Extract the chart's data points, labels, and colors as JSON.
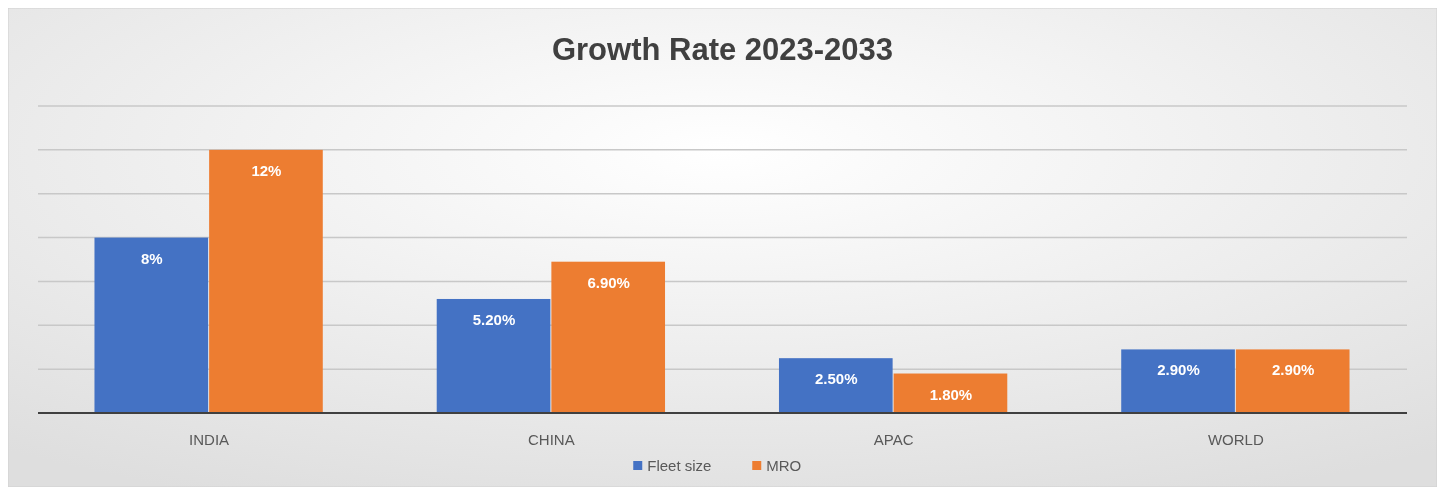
{
  "chart_data": {
    "type": "bar",
    "title": "Growth Rate 2023-2033",
    "categories": [
      "INDIA",
      "CHINA",
      "APAC",
      "WORLD"
    ],
    "series": [
      {
        "name": "Fleet size",
        "color": "#4472c4",
        "values": [
          8,
          5.2,
          2.5,
          2.9
        ],
        "value_labels": [
          "8%",
          "5.20%",
          "2.50%",
          "2.90%"
        ]
      },
      {
        "name": "MRO",
        "color": "#ed7d31",
        "values": [
          12,
          6.9,
          1.8,
          2.9
        ],
        "value_labels": [
          "12%",
          "6.90%",
          "1.80%",
          "2.90%"
        ]
      }
    ],
    "ylim": [
      0,
      14
    ],
    "yticks": [
      {
        "value": 0,
        "label": null
      },
      {
        "value": 2,
        "label": null
      },
      {
        "value": 4,
        "label": null
      },
      {
        "value": 6,
        "label": null
      },
      {
        "value": 8,
        "label": null
      },
      {
        "value": 10,
        "label": null
      },
      {
        "value": 12,
        "label": null
      },
      {
        "value": 14,
        "label": null
      }
    ],
    "tick_labels": "x",
    "grid": "y",
    "legend": "bottom"
  }
}
